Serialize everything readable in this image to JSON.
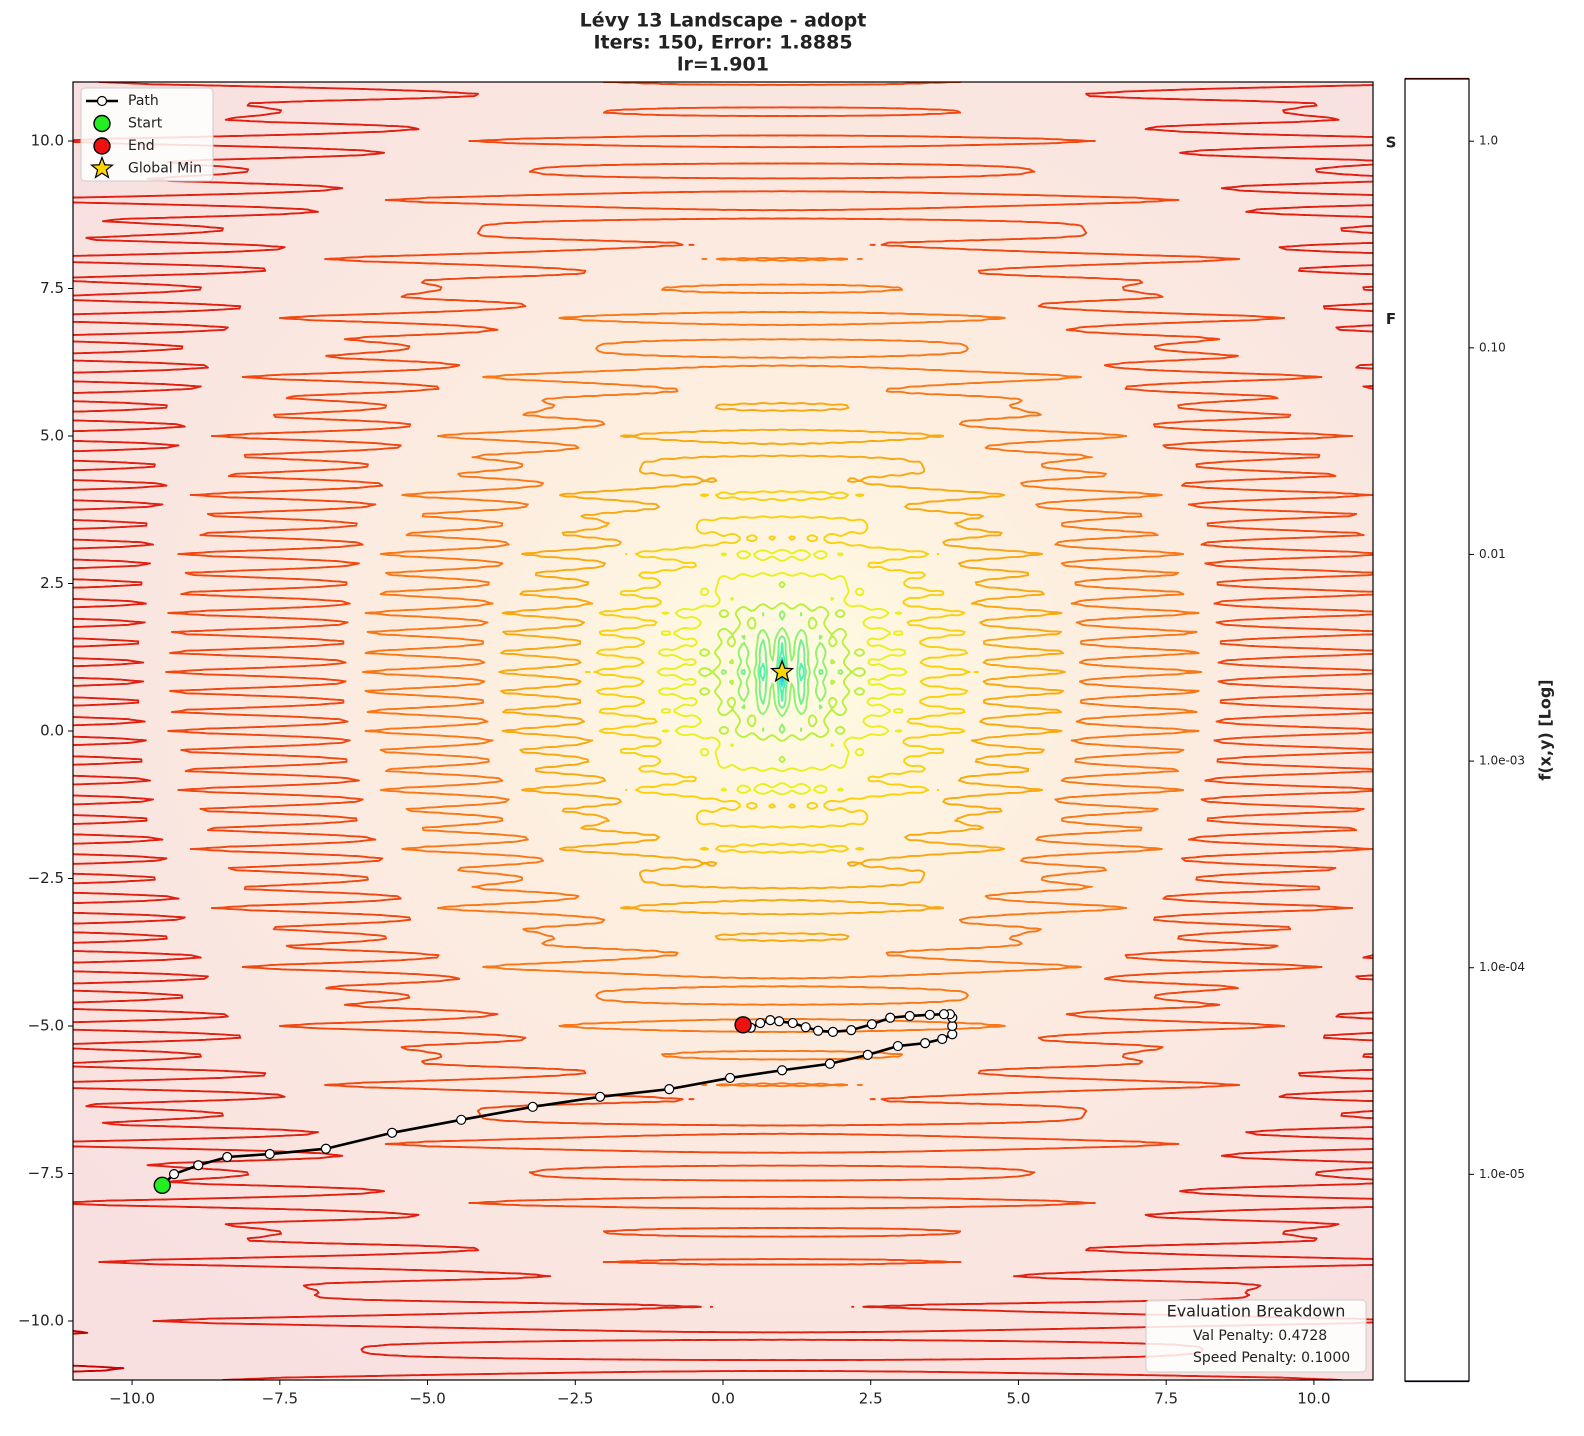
{
  "chart_data": {
    "type": "contour",
    "title": [
      "Lévy 13 Landscape - adopt",
      "Iters: 150, Error: 1.8885",
      "lr=1.901"
    ],
    "xlim": [
      -11,
      11
    ],
    "ylim": [
      -11,
      11
    ],
    "xticks": [
      {
        "value": -10,
        "label": "−10.0"
      },
      {
        "value": -7.5,
        "label": "−7.5"
      },
      {
        "value": -5,
        "label": "−5.0"
      },
      {
        "value": -2.5,
        "label": "−2.5"
      },
      {
        "value": 0,
        "label": "0.0"
      },
      2.5,
      {
        "value": 5,
        "label": "5.0"
      },
      7.5,
      {
        "value": 10,
        "label": "10.0"
      }
    ],
    "yticks": [
      {
        "value": -10,
        "label": "−10.0"
      },
      {
        "value": -7.5,
        "label": "−7.5"
      },
      {
        "value": -5,
        "label": "−5.0"
      },
      {
        "value": -2.5,
        "label": "−2.5"
      },
      {
        "value": 0,
        "label": "0.0"
      },
      2.5,
      {
        "value": 5,
        "label": "5.0"
      },
      7.5,
      {
        "value": 10,
        "label": "10.0"
      }
    ],
    "contour_levels": [
      1e-06,
      2.146e-06,
      4.605e-06,
      9.883e-06,
      2.121e-05,
      4.551e-05,
      9.767e-05,
      0.0002096,
      0.0004498,
      0.0009654,
      0.002072,
      0.004446,
      0.009541,
      0.02048,
      0.04394,
      0.0943,
      0.2024,
      0.4343,
      0.932,
      2.0
    ],
    "contour_colors": [
      "#00004c",
      "#0a1a9c",
      "#1030c8",
      "#1848dc",
      "#2060e0",
      "#2080e8",
      "#20b0f0",
      "#30e0e0",
      "#50f0b0",
      "#70f090",
      "#90f070",
      "#b8f040",
      "#e8f020",
      "#f8d010",
      "#f8a810",
      "#f87818",
      "#f04810",
      "#e02010",
      "#c80000",
      "#800000"
    ],
    "colorbar": {
      "label": "f(x,y) [Log]",
      "lim": [
        1e-06,
        2
      ],
      "scale": "log",
      "ticks": [
        {
          "value": 1,
          "label": "1.0"
        },
        {
          "value": 0.1,
          "label": "0.10"
        },
        0.01,
        {
          "value": 0.001,
          "label": "1.0e-03"
        },
        {
          "value": 0.0001,
          "label": "1.0e-04"
        },
        {
          "value": 1e-05,
          "label": "1.0e-05"
        }
      ],
      "markers": [
        {
          "label": "S",
          "value": 0.98,
          "color": "#22ee22"
        },
        {
          "label": "F",
          "value": 0.137,
          "color": "#ee1111"
        }
      ]
    },
    "series": [
      {
        "name": "Path",
        "color": "#000000",
        "marker": "o",
        "x": [
          -9.49,
          -9.29,
          -8.88,
          -8.39,
          -7.67,
          -6.72,
          -5.6,
          -4.43,
          -3.22,
          -2.08,
          -0.91,
          0.12,
          1.0,
          1.81,
          2.45,
          2.96,
          3.42,
          3.71,
          3.88,
          3.88,
          3.88,
          3.84,
          3.74,
          3.5,
          3.16,
          2.83,
          2.52,
          2.17,
          1.86,
          1.61,
          1.4,
          1.18,
          0.95,
          0.8,
          0.63,
          0.47,
          0.34
        ],
        "y": [
          -7.7,
          -7.51,
          -7.36,
          -7.22,
          -7.17,
          -7.08,
          -6.81,
          -6.59,
          -6.37,
          -6.2,
          -6.07,
          -5.88,
          -5.75,
          -5.64,
          -5.49,
          -5.34,
          -5.29,
          -5.22,
          -5.14,
          -5.0,
          -4.86,
          -4.8,
          -4.8,
          -4.81,
          -4.83,
          -4.86,
          -4.97,
          -5.07,
          -5.1,
          -5.08,
          -5.02,
          -4.95,
          -4.92,
          -4.9,
          -4.95,
          -5.03,
          -4.98
        ]
      },
      {
        "name": "Start",
        "color": "#22ee22",
        "marker": "o",
        "x": [
          -9.49
        ],
        "y": [
          -7.7
        ]
      },
      {
        "name": "End",
        "color": "#ee1111",
        "marker": "o",
        "x": [
          0.34
        ],
        "y": [
          -4.98
        ]
      },
      {
        "name": "Global Min",
        "color": "#ffd700",
        "marker": "*",
        "x": [
          1
        ],
        "y": [
          1
        ]
      }
    ],
    "legend": "upper left",
    "annotation": {
      "title": "Evaluation Breakdown",
      "lines": [
        "Val Penalty: 0.4728",
        "Speed Penalty: 0.1000"
      ]
    }
  }
}
